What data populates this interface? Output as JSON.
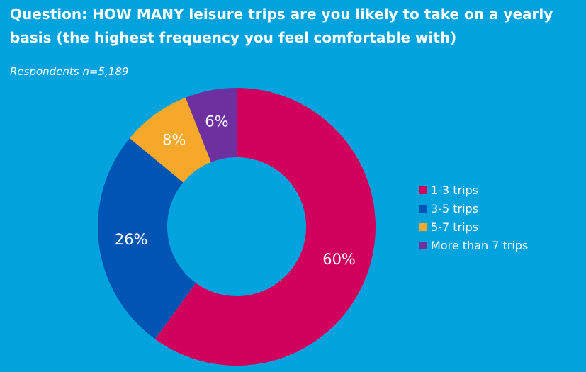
{
  "title": "Question: HOW MANY leisure trips are you likely  to take on a yearly basis (the highest frequency you feel comfortable with)",
  "subtitle": "Respondents n=5,189",
  "chart_data": {
    "type": "pie",
    "donut": true,
    "categories": [
      "1-3 trips",
      "3-5 trips",
      "5-7 trips",
      "More than 7 trips"
    ],
    "values": [
      60,
      26,
      8,
      6
    ],
    "labels": [
      "60%",
      "26%",
      "8%",
      "6%"
    ],
    "colors": [
      "#d1005d",
      "#0054b4",
      "#f5a82a",
      "#6e2fa0"
    ],
    "legend_position": "right"
  }
}
